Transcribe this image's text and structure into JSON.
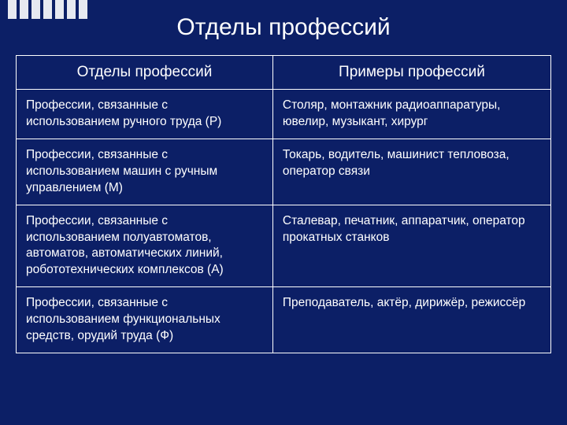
{
  "slide": {
    "title": "Отделы профессий",
    "background_color": "#0c1f66",
    "text_color": "#ffffff",
    "border_color": "#ffffff",
    "title_fontsize": 30,
    "header_fontsize": 19,
    "cell_fontsize": 15.5,
    "decoration_bars": 7
  },
  "table": {
    "columns": [
      "Отделы профессий",
      "Примеры профессий"
    ],
    "column_widths": [
      "48%",
      "52%"
    ],
    "rows": [
      {
        "dept": "Профессии, связанные с использованием ручного труда (Р)",
        "examples": "Столяр, монтажник радиоаппаратуры, ювелир, музыкант, хирург"
      },
      {
        "dept": "Профессии, связанные с использованием машин с ручным управлением (М)",
        "examples": "Токарь, водитель, машинист тепловоза, оператор связи"
      },
      {
        "dept": "Профессии, связанные с использованием полуавтоматов, автоматов, автоматических линий, робототехнических комплексов (А)",
        "examples": "Сталевар, печатник, аппаратчик, оператор прокатных станков"
      },
      {
        "dept": "Профессии, связанные с использованием функциональных средств, орудий труда (Ф)",
        "examples": "Преподаватель, актёр, дирижёр, режиссёр"
      }
    ]
  }
}
